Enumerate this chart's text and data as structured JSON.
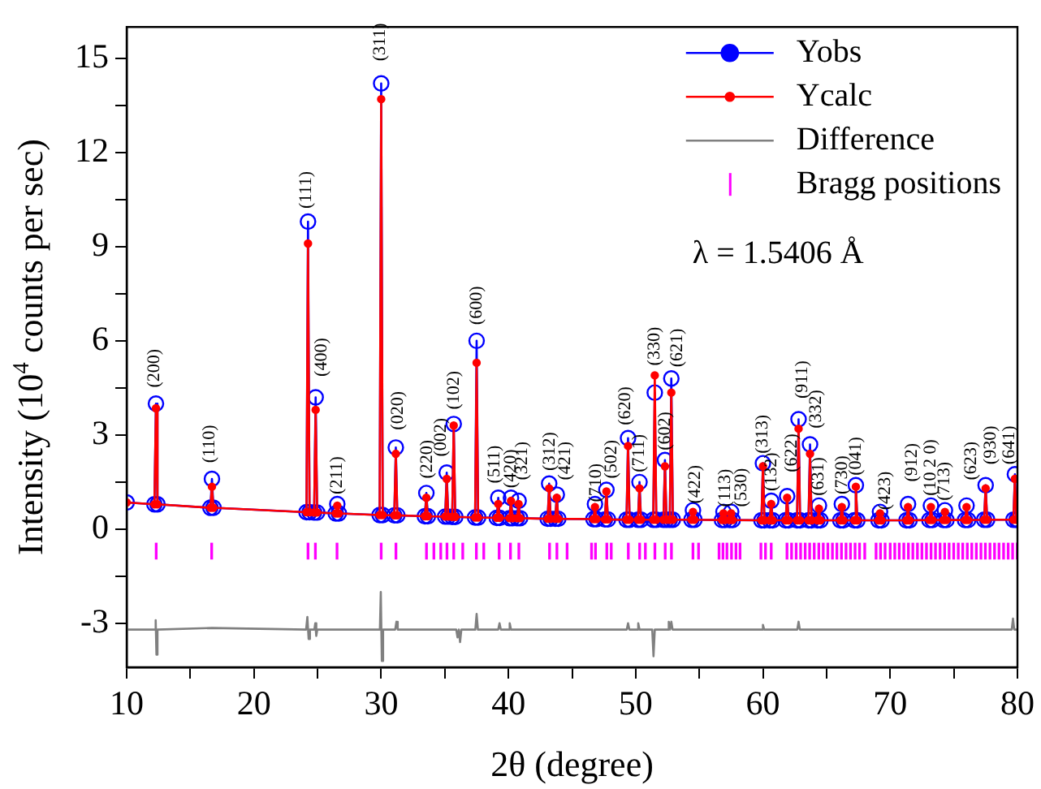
{
  "chart_data": {
    "type": "line",
    "xlabel": "2θ (degree)",
    "ylabel": "Intensity (10$^{4}$ counts per sec)",
    "xlim": [
      10,
      80
    ],
    "xticks": [
      10,
      {
        "value": 15,
        "label": null
      },
      20,
      {
        "value": 25,
        "label": null
      },
      30,
      {
        "value": 35,
        "label": null
      },
      40,
      {
        "value": 45,
        "label": null
      },
      50,
      {
        "value": 55,
        "label": null
      },
      60,
      {
        "value": 65,
        "label": null
      },
      70,
      {
        "value": 75,
        "label": null
      },
      80
    ],
    "ylim": [
      -4.4,
      16
    ],
    "yticks": [
      -3,
      {
        "value": -1.5,
        "label": null
      },
      0,
      {
        "value": 1.5,
        "label": null
      },
      3,
      {
        "value": 4.5,
        "label": null
      },
      6,
      {
        "value": 7.5,
        "label": null
      },
      9,
      {
        "value": 10.5,
        "label": null
      },
      12,
      {
        "value": 13.5,
        "label": null
      },
      15
    ],
    "legend": "top right",
    "series": [
      {
        "name": "Yobs",
        "type": "line",
        "marker": "circle",
        "color": "#0000ff",
        "x": [
          10,
          12.18,
          12.3,
          12.42,
          16.58,
          16.7,
          16.82,
          24.13,
          24.25,
          24.37,
          24.73,
          24.85,
          24.97,
          26.43,
          26.55,
          26.67,
          29.88,
          30,
          30.12,
          31.03,
          31.15,
          31.27,
          33.43,
          33.55,
          33.67,
          35.03,
          35.15,
          35.27,
          35.58,
          35.7,
          35.82,
          37.38,
          37.5,
          37.62,
          39.08,
          39.2,
          39.32,
          40.08,
          40.2,
          40.32,
          40.68,
          40.8,
          40.92,
          43.08,
          43.2,
          43.32,
          43.68,
          43.8,
          43.92,
          46.68,
          46.8,
          46.92,
          47.58,
          47.7,
          47.82,
          49.28,
          49.4,
          49.52,
          50.18,
          50.3,
          50.42,
          51.38,
          51.5,
          51.62,
          52.18,
          52.3,
          52.42,
          52.68,
          52.8,
          52.92,
          54.38,
          54.5,
          54.62,
          56.78,
          56.9,
          57.02,
          57.38,
          57.5,
          57.62,
          59.88,
          60,
          60.12,
          60.53,
          60.65,
          60.77,
          61.78,
          61.9,
          62.02,
          62.68,
          62.8,
          62.92,
          63.58,
          63.7,
          63.82,
          64.28,
          64.4,
          64.52,
          66.08,
          66.2,
          66.32,
          67.18,
          67.3,
          67.42,
          69.08,
          69.2,
          69.32,
          71.28,
          71.4,
          71.52,
          73.08,
          73.2,
          73.32,
          74.18,
          74.3,
          74.42,
          75.88,
          76,
          76.12,
          77.38,
          77.5,
          77.62,
          79.68,
          79.8,
          79.92,
          80
        ],
        "values": [
          0.85,
          0.79,
          4.0,
          0.79,
          0.68,
          1.6,
          0.68,
          0.54,
          9.8,
          0.54,
          0.53,
          4.2,
          0.53,
          0.5,
          0.8,
          0.5,
          0.45,
          14.2,
          0.45,
          0.44,
          2.6,
          0.44,
          0.41,
          1.15,
          0.41,
          0.4,
          1.8,
          0.4,
          0.39,
          3.35,
          0.39,
          0.37,
          6.0,
          0.37,
          0.36,
          1.0,
          0.36,
          0.35,
          1.0,
          0.35,
          0.35,
          0.9,
          0.35,
          0.33,
          1.45,
          0.33,
          0.33,
          1.1,
          0.33,
          0.32,
          0.8,
          0.32,
          0.31,
          1.25,
          0.31,
          0.3,
          2.9,
          0.3,
          0.3,
          1.5,
          0.3,
          0.3,
          4.35,
          0.3,
          0.3,
          2.2,
          0.3,
          0.3,
          4.8,
          0.3,
          0.3,
          0.6,
          0.3,
          0.29,
          0.55,
          0.29,
          0.29,
          0.55,
          0.29,
          0.28,
          2.1,
          0.28,
          0.28,
          0.9,
          0.28,
          0.28,
          1.05,
          0.28,
          0.28,
          3.5,
          0.28,
          0.28,
          2.7,
          0.28,
          0.28,
          0.75,
          0.28,
          0.28,
          0.8,
          0.28,
          0.28,
          1.4,
          0.28,
          0.28,
          0.55,
          0.28,
          0.28,
          0.8,
          0.28,
          0.29,
          0.75,
          0.29,
          0.29,
          0.6,
          0.29,
          0.29,
          0.75,
          0.29,
          0.3,
          1.4,
          0.3,
          0.3,
          1.75,
          0.3,
          0.3
        ]
      },
      {
        "name": "Ycalc",
        "type": "line",
        "marker": "circle",
        "color": "#ff0000",
        "x": [
          10,
          12.18,
          12.3,
          12.42,
          16.58,
          16.7,
          16.82,
          24.13,
          24.25,
          24.37,
          24.73,
          24.85,
          24.97,
          26.43,
          26.55,
          26.67,
          29.88,
          30,
          30.12,
          31.03,
          31.15,
          31.27,
          33.43,
          33.55,
          33.67,
          35.03,
          35.15,
          35.27,
          35.58,
          35.7,
          35.82,
          37.38,
          37.5,
          37.62,
          39.08,
          39.2,
          39.32,
          40.08,
          40.2,
          40.32,
          40.68,
          40.8,
          40.92,
          43.08,
          43.2,
          43.32,
          43.68,
          43.8,
          43.92,
          46.68,
          46.8,
          46.92,
          47.58,
          47.7,
          47.82,
          49.28,
          49.4,
          49.52,
          50.18,
          50.3,
          50.42,
          51.38,
          51.5,
          51.62,
          52.18,
          52.3,
          52.42,
          52.68,
          52.8,
          52.92,
          54.38,
          54.5,
          54.62,
          56.78,
          56.9,
          57.02,
          57.38,
          57.5,
          57.62,
          59.88,
          60,
          60.12,
          60.53,
          60.65,
          60.77,
          61.78,
          61.9,
          62.02,
          62.68,
          62.8,
          62.92,
          63.58,
          63.7,
          63.82,
          64.28,
          64.4,
          64.52,
          66.08,
          66.2,
          66.32,
          67.18,
          67.3,
          67.42,
          69.08,
          69.2,
          69.32,
          71.28,
          71.4,
          71.52,
          73.08,
          73.2,
          73.32,
          74.18,
          74.3,
          74.42,
          75.88,
          76,
          76.12,
          77.38,
          77.5,
          77.62,
          79.68,
          79.8,
          79.92,
          80
        ],
        "values": [
          0.85,
          0.79,
          3.85,
          0.79,
          0.68,
          1.35,
          0.68,
          0.54,
          9.1,
          0.54,
          0.53,
          3.8,
          0.53,
          0.5,
          0.75,
          0.5,
          0.45,
          13.7,
          0.45,
          0.44,
          2.4,
          0.44,
          0.41,
          1.0,
          0.41,
          0.4,
          1.6,
          0.4,
          0.39,
          3.3,
          0.39,
          0.37,
          5.3,
          0.37,
          0.36,
          0.8,
          0.36,
          0.35,
          0.9,
          0.35,
          0.35,
          0.8,
          0.35,
          0.33,
          1.3,
          0.33,
          0.33,
          1.0,
          0.33,
          0.32,
          0.7,
          0.32,
          0.31,
          1.2,
          0.31,
          0.3,
          2.65,
          0.3,
          0.3,
          1.3,
          0.3,
          0.3,
          4.9,
          0.3,
          0.3,
          2.0,
          0.3,
          0.3,
          4.35,
          0.3,
          0.3,
          0.55,
          0.3,
          0.29,
          0.5,
          0.29,
          0.29,
          0.5,
          0.29,
          0.28,
          2.0,
          0.28,
          0.28,
          0.8,
          0.28,
          0.28,
          1.0,
          0.28,
          0.28,
          3.2,
          0.28,
          0.28,
          2.4,
          0.28,
          0.28,
          0.65,
          0.28,
          0.28,
          0.7,
          0.28,
          0.28,
          1.35,
          0.28,
          0.28,
          0.5,
          0.28,
          0.28,
          0.7,
          0.28,
          0.29,
          0.7,
          0.29,
          0.29,
          0.55,
          0.29,
          0.29,
          0.7,
          0.29,
          0.3,
          1.3,
          0.3,
          0.3,
          1.6,
          0.3,
          0.3
        ]
      },
      {
        "name": "Difference",
        "type": "line",
        "marker": "none",
        "color": "#808080",
        "x": [
          10,
          12.2,
          12.28,
          12.34,
          12.42,
          16.7,
          24.1,
          24.2,
          24.3,
          24.4,
          24.75,
          24.82,
          24.9,
          24.98,
          29.9,
          29.97,
          30.05,
          30.15,
          31.1,
          31.2,
          31.3,
          35.9,
          36.0,
          36.1,
          36.2,
          36.3,
          37.4,
          37.5,
          37.6,
          39.2,
          39.3,
          39.4,
          40.0,
          40.1,
          40.2,
          49.3,
          49.4,
          49.5,
          50.1,
          50.2,
          50.3,
          51.3,
          51.4,
          51.5,
          52.5,
          52.6,
          52.7,
          52.8,
          52.9,
          59.9,
          60.0,
          60.1,
          62.7,
          62.8,
          62.9,
          79.55,
          79.65,
          79.75,
          80
        ],
        "values": [
          -3.2,
          -3.2,
          -2.9,
          -4.0,
          -3.2,
          -3.15,
          -3.2,
          -2.8,
          -3.5,
          -3.2,
          -3.2,
          -3.0,
          -3.4,
          -3.2,
          -3.2,
          -2.0,
          -4.2,
          -3.2,
          -3.2,
          -2.95,
          -3.2,
          -3.2,
          -3.45,
          -3.2,
          -3.6,
          -3.2,
          -3.2,
          -2.7,
          -3.2,
          -3.2,
          -3.0,
          -3.2,
          -3.2,
          -3.0,
          -3.2,
          -3.2,
          -3.0,
          -3.2,
          -3.2,
          -3.0,
          -3.2,
          -3.2,
          -4.05,
          -3.2,
          -3.2,
          -2.95,
          -3.2,
          -2.95,
          -3.2,
          -3.2,
          -3.05,
          -3.2,
          -3.2,
          -2.95,
          -3.2,
          -3.2,
          -2.85,
          -3.2,
          -3.2
        ]
      },
      {
        "name": "Bragg positions",
        "type": "bar",
        "color": "#ff00ff",
        "base": [
          -0.95,
          -0.95,
          -0.95,
          -0.95,
          -0.95,
          -0.95,
          -0.95,
          -0.95,
          -0.95,
          -0.95,
          -0.95,
          -0.95,
          -0.95,
          -0.95,
          -0.95,
          -0.95,
          -0.95,
          -0.95,
          -0.95,
          -0.95,
          -0.95,
          -0.95,
          -0.95,
          -0.95,
          -0.95,
          -0.95,
          -0.95,
          -0.95,
          -0.95,
          -0.95,
          -0.95,
          -0.95,
          -0.95,
          -0.95,
          -0.95,
          -0.95,
          -0.95,
          -0.95,
          -0.95,
          -0.95,
          -0.95,
          -0.95,
          -0.95,
          -0.95,
          -0.95,
          -0.95,
          -0.95,
          -0.95,
          -0.95,
          -0.95,
          -0.95,
          -0.95,
          -0.95,
          -0.95,
          -0.95,
          -0.95,
          -0.95,
          -0.95,
          -0.95,
          -0.95,
          -0.95,
          -0.95,
          -0.95,
          -0.95,
          -0.95,
          -0.95,
          -0.95,
          -0.95,
          -0.95,
          -0.95,
          -0.95,
          -0.95,
          -0.95,
          -0.95,
          -0.95,
          -0.95,
          -0.95,
          -0.95,
          -0.95,
          -0.95,
          -0.95,
          -0.95,
          -0.95,
          -0.95,
          -0.95,
          -0.95,
          -0.95,
          -0.95,
          -0.95,
          -0.95,
          -0.95,
          -0.95
        ],
        "x": [
          12.32,
          16.68,
          24.25,
          24.83,
          26.53,
          30.0,
          31.16,
          33.56,
          34.14,
          34.68,
          35.17,
          35.7,
          36.41,
          37.48,
          38.06,
          39.27,
          40.16,
          40.82,
          43.23,
          43.81,
          44.61,
          46.53,
          46.84,
          47.73,
          48.08,
          49.42,
          50.31,
          50.76,
          51.51,
          52.32,
          52.81,
          54.5,
          54.94,
          56.55,
          56.86,
          57.17,
          57.53,
          57.88,
          58.2,
          59.84,
          60.2,
          60.65,
          61.89,
          62.25,
          62.61,
          62.96,
          63.32,
          63.67,
          64.03,
          64.39,
          64.74,
          65.1,
          65.46,
          65.81,
          66.17,
          66.53,
          66.88,
          67.24,
          67.59,
          68.0,
          68.89,
          69.24,
          69.6,
          70.0,
          70.36,
          70.71,
          71.07,
          71.43,
          71.78,
          72.14,
          72.49,
          72.85,
          73.21,
          73.56,
          73.92,
          74.28,
          74.63,
          74.99,
          75.35,
          75.7,
          76.06,
          76.41,
          76.77,
          77.13,
          77.48,
          77.84,
          78.2,
          78.55,
          78.91,
          79.27,
          79.62,
          79.98
        ],
        "values": [
          0.5,
          0.5,
          0.5,
          0.5,
          0.5,
          0.5,
          0.5,
          0.5,
          0.5,
          0.5,
          0.5,
          0.5,
          0.5,
          0.5,
          0.5,
          0.5,
          0.5,
          0.5,
          0.5,
          0.5,
          0.5,
          0.5,
          0.5,
          0.5,
          0.5,
          0.5,
          0.5,
          0.5,
          0.5,
          0.5,
          0.5,
          0.5,
          0.5,
          0.5,
          0.5,
          0.5,
          0.5,
          0.5,
          0.5,
          0.5,
          0.5,
          0.5,
          0.5,
          0.5,
          0.5,
          0.5,
          0.5,
          0.5,
          0.5,
          0.5,
          0.5,
          0.5,
          0.5,
          0.5,
          0.5,
          0.5,
          0.5,
          0.5,
          0.5,
          0.5,
          0.5,
          0.5,
          0.5,
          0.5,
          0.5,
          0.5,
          0.5,
          0.5,
          0.5,
          0.5,
          0.5,
          0.5,
          0.5,
          0.5,
          0.5,
          0.5,
          0.5,
          0.5,
          0.5,
          0.5,
          0.5,
          0.5,
          0.5,
          0.5,
          0.5,
          0.5,
          0.5,
          0.5,
          0.5,
          0.5,
          0.5,
          0.5
        ]
      }
    ],
    "annotations": [
      "λ = 1.5406 Å",
      {
        "text": "(200)",
        "x": 12.2,
        "y": 4.2
      },
      {
        "text": "(110)",
        "x": 16.5,
        "y": 1.8
      },
      {
        "text": "(111)",
        "x": 24.1,
        "y": 9.9
      },
      {
        "text": "(400)",
        "x": 25.3,
        "y": 4.55
      },
      {
        "text": "(211)",
        "x": 26.55,
        "y": 0.8
      },
      {
        "text": "(311)",
        "x": 29.9,
        "y": 14.6
      },
      {
        "text": "(020)",
        "x": 31.3,
        "y": 2.85
      },
      {
        "text": "(220)",
        "x": 33.6,
        "y": 1.3
      },
      {
        "text": "(002)",
        "x": 34.7,
        "y": 2.0
      },
      {
        "text": "(102)",
        "x": 35.75,
        "y": 3.5
      },
      {
        "text": "(600)",
        "x": 37.5,
        "y": 6.2
      },
      {
        "text": "(511)",
        "x": 38.9,
        "y": 1.15
      },
      {
        "text": "(420)",
        "x": 40.2,
        "y": 1.0
      },
      {
        "text": "(321)",
        "x": 41.1,
        "y": 1.25
      },
      {
        "text": "(312)",
        "x": 43.25,
        "y": 1.55
      },
      {
        "text": "(421)",
        "x": 44.5,
        "y": 1.25
      },
      {
        "text": "(710)",
        "x": 46.9,
        "y": 0.55
      },
      {
        "text": "(502)",
        "x": 48.1,
        "y": 1.3
      },
      {
        "text": "(620)",
        "x": 49.2,
        "y": 3.0
      },
      {
        "text": "(711)",
        "x": 50.3,
        "y": 1.5
      },
      {
        "text": "(330)",
        "x": 51.5,
        "y": 4.9
      },
      {
        "text": "(602)",
        "x": 52.3,
        "y": 2.2
      },
      {
        "text": "(621)",
        "x": 53.3,
        "y": 4.85
      },
      {
        "text": "(422)",
        "x": 54.7,
        "y": 0.5
      },
      {
        "text": "(113)",
        "x": 57.05,
        "y": 0.4
      },
      {
        "text": "(530)",
        "x": 58.3,
        "y": 0.4
      },
      {
        "text": "(313)",
        "x": 60.0,
        "y": 2.1
      },
      {
        "text": "(132)",
        "x": 60.65,
        "y": 0.9
      },
      {
        "text": "(622)",
        "x": 62.3,
        "y": 1.5
      },
      {
        "text": "(911)",
        "x": 63.1,
        "y": 3.85
      },
      {
        "text": "(332)",
        "x": 64.2,
        "y": 2.9
      },
      {
        "text": "(631)",
        "x": 64.4,
        "y": 0.75
      },
      {
        "text": "(730)",
        "x": 66.2,
        "y": 0.8
      },
      {
        "text": "(041)",
        "x": 67.3,
        "y": 1.4
      },
      {
        "text": "(423)",
        "x": 69.6,
        "y": 0.3
      },
      {
        "text": "(912)",
        "x": 71.7,
        "y": 1.2
      },
      {
        "text": "(10 2 0)",
        "x": 73.2,
        "y": 0.75
      },
      {
        "text": "(713)",
        "x": 74.3,
        "y": 0.6
      },
      {
        "text": "(623)",
        "x": 76.4,
        "y": 1.25
      },
      {
        "text": "(930)",
        "x": 77.9,
        "y": 1.75
      },
      {
        "text": "(641)",
        "x": 79.8,
        "y": 1.75
      }
    ]
  }
}
